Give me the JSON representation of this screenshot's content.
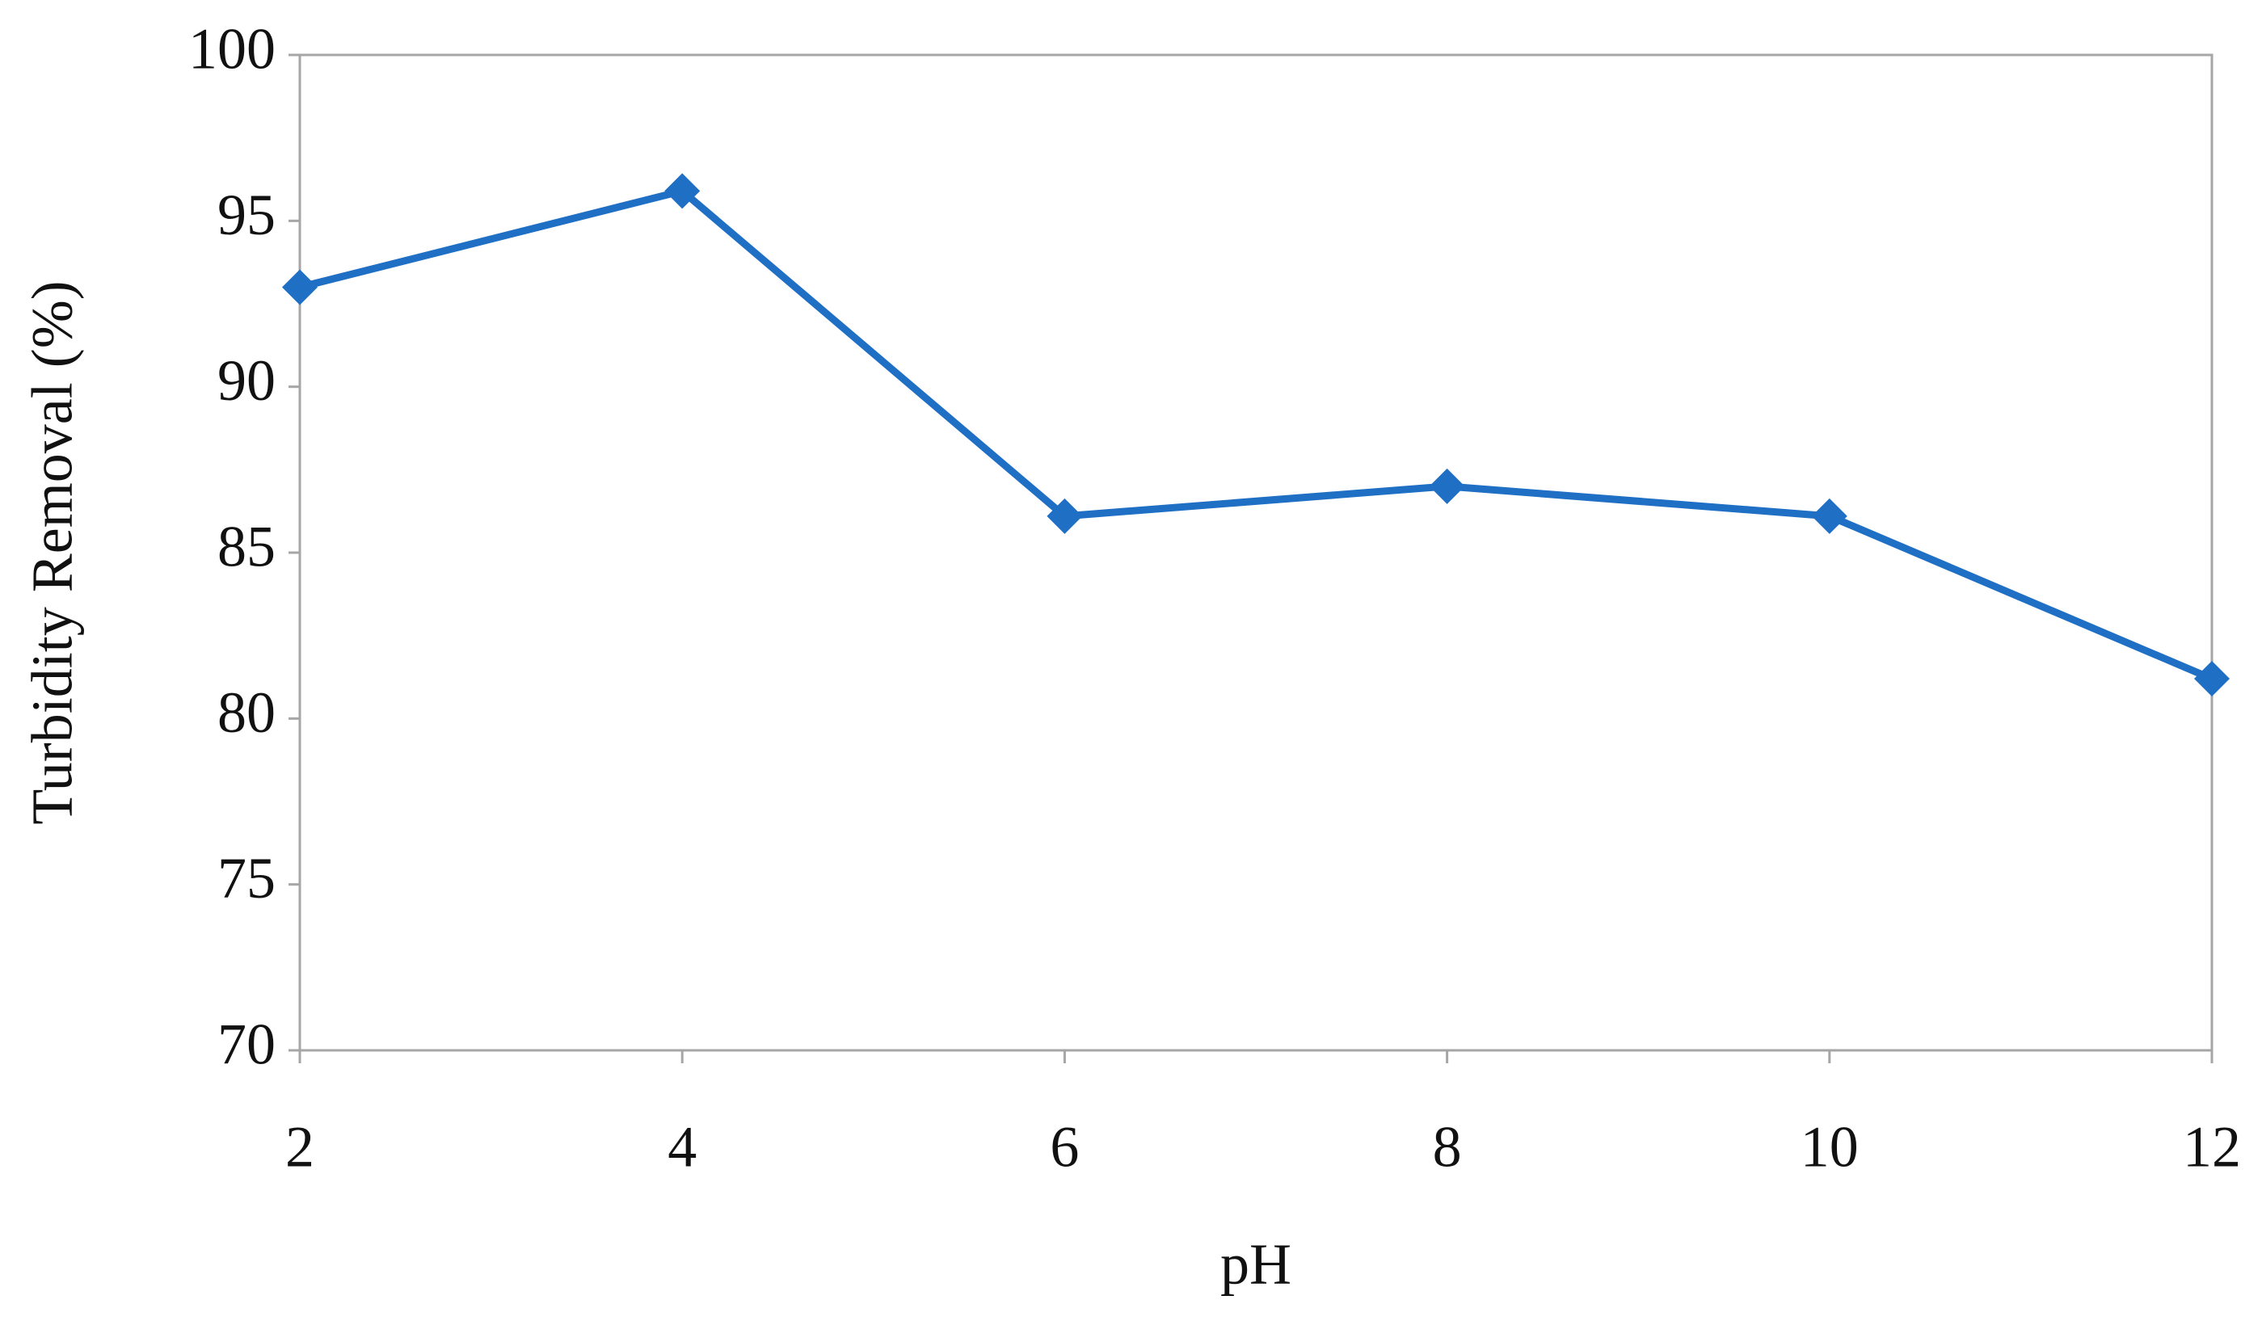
{
  "chart_data": {
    "type": "line",
    "x_label": "pH",
    "y_label": "Turbidity Removal (%)",
    "x": [
      2,
      4,
      6,
      8,
      10,
      12
    ],
    "series": [
      {
        "name": "Turbidity Removal",
        "color": "#1f6fc5",
        "values": [
          93,
          95.9,
          86.1,
          87,
          86.1,
          81.2
        ]
      }
    ],
    "xlim": [
      2,
      12
    ],
    "xticks": [
      2,
      4,
      6,
      8,
      10,
      12
    ],
    "ylim": [
      70,
      100
    ],
    "yticks": [
      70,
      75,
      80,
      85,
      90,
      95,
      100
    ],
    "grid": false,
    "legend": false
  }
}
